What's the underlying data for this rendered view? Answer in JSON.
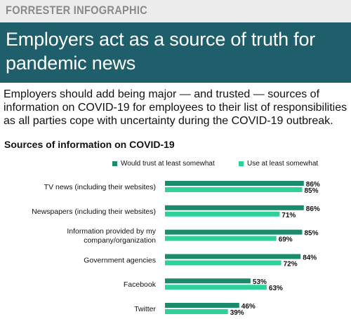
{
  "brand": "FORRESTER INFOGRAPHIC",
  "headline": "Employers act as a source of truth for pandemic news",
  "intro": "Employers should add being major — and trusted — sources of information on COVID-19 for employees to their list of responsibilities as all parties cope with uncertainty during the COVID-19 outbreak.",
  "colors": {
    "trust": "#1a8c6c",
    "use": "#2ed19a",
    "banner": "#1f5f6b"
  },
  "chart_data": {
    "type": "bar",
    "orientation": "horizontal",
    "title": "Sources of information on COVID-19",
    "categories": [
      [
        "TV news (including their websites)"
      ],
      [
        "Newspapers (including their websites)"
      ],
      [
        "Information provided by my",
        "company/organization"
      ],
      [
        "Government agencies"
      ],
      [
        "Facebook"
      ],
      [
        "Twitter"
      ]
    ],
    "series": [
      {
        "name": "Would trust at least somewhat",
        "values": [
          86,
          86,
          85,
          84,
          53,
          46
        ]
      },
      {
        "name": "Use at least somewhat",
        "values": [
          85,
          71,
          69,
          72,
          63,
          39
        ]
      }
    ],
    "value_suffix": "%",
    "xlim": [
      0,
      100
    ],
    "legend_position": "top-right",
    "grid": false
  }
}
